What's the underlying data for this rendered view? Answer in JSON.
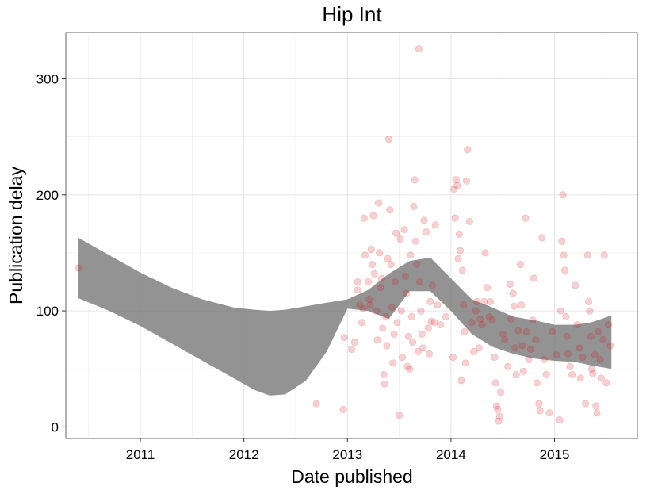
{
  "chart_data": {
    "type": "scatter",
    "title": "Hip Int",
    "xlabel": "Date published",
    "ylabel": "Publication delay",
    "x_tick_labels": [
      "2011",
      "2012",
      "2013",
      "2014",
      "2015"
    ],
    "x_ticks": [
      2011,
      2012,
      2013,
      2014,
      2015
    ],
    "y_ticks": [
      0,
      100,
      200,
      300
    ],
    "y_tick_labels": [
      "0",
      "100",
      "200",
      "300"
    ],
    "xlim": [
      2010.28,
      2015.8
    ],
    "ylim": [
      -10,
      340
    ],
    "grid": true,
    "colors": {
      "points": "#d7191c",
      "ribbon": "#808080",
      "grid": "#ebebeb",
      "border": "#7f7f7f"
    },
    "series": [
      {
        "type": "points",
        "points": [
          [
            2010.4,
            137
          ],
          [
            2012.7,
            20
          ],
          [
            2012.96,
            15
          ],
          [
            2012.97,
            77
          ],
          [
            2013.04,
            67
          ],
          [
            2013.07,
            73
          ],
          [
            2013.1,
            118
          ],
          [
            2013.1,
            125
          ],
          [
            2013.12,
            105
          ],
          [
            2013.14,
            90
          ],
          [
            2013.15,
            102
          ],
          [
            2013.16,
            180
          ],
          [
            2013.17,
            148
          ],
          [
            2013.2,
            125
          ],
          [
            2013.21,
            110
          ],
          [
            2013.22,
            105
          ],
          [
            2013.23,
            153
          ],
          [
            2013.24,
            140
          ],
          [
            2013.25,
            182
          ],
          [
            2013.26,
            132
          ],
          [
            2013.28,
            100
          ],
          [
            2013.29,
            75
          ],
          [
            2013.3,
            193
          ],
          [
            2013.31,
            150
          ],
          [
            2013.32,
            120
          ],
          [
            2013.33,
            128
          ],
          [
            2013.34,
            85
          ],
          [
            2013.35,
            45
          ],
          [
            2013.36,
            37
          ],
          [
            2013.37,
            95
          ],
          [
            2013.38,
            70
          ],
          [
            2013.39,
            145
          ],
          [
            2013.4,
            248
          ],
          [
            2013.41,
            187
          ],
          [
            2013.42,
            140
          ],
          [
            2013.43,
            103
          ],
          [
            2013.44,
            55
          ],
          [
            2013.45,
            80
          ],
          [
            2013.46,
            125
          ],
          [
            2013.47,
            167
          ],
          [
            2013.48,
            90
          ],
          [
            2013.5,
            10
          ],
          [
            2013.51,
            162
          ],
          [
            2013.52,
            100
          ],
          [
            2013.53,
            60
          ],
          [
            2013.55,
            170
          ],
          [
            2013.56,
            130
          ],
          [
            2013.57,
            115
          ],
          [
            2013.58,
            52
          ],
          [
            2013.59,
            78
          ],
          [
            2013.6,
            50
          ],
          [
            2013.61,
            148
          ],
          [
            2013.62,
            95
          ],
          [
            2013.63,
            73
          ],
          [
            2013.64,
            190
          ],
          [
            2013.65,
            213
          ],
          [
            2013.66,
            160
          ],
          [
            2013.67,
            140
          ],
          [
            2013.68,
            65
          ],
          [
            2013.69,
            326
          ],
          [
            2013.7,
            125
          ],
          [
            2013.71,
            100
          ],
          [
            2013.72,
            80
          ],
          [
            2013.73,
            68
          ],
          [
            2013.74,
            178
          ],
          [
            2013.76,
            168
          ],
          [
            2013.78,
            85
          ],
          [
            2013.79,
            63
          ],
          [
            2013.8,
            108
          ],
          [
            2013.81,
            91
          ],
          [
            2013.82,
            122
          ],
          [
            2013.84,
            90
          ],
          [
            2013.85,
            174
          ],
          [
            2013.87,
            105
          ],
          [
            2013.9,
            88
          ],
          [
            2013.95,
            95
          ],
          [
            2014.02,
            60
          ],
          [
            2014.03,
            205
          ],
          [
            2014.04,
            180
          ],
          [
            2014.05,
            213
          ],
          [
            2014.06,
            208
          ],
          [
            2014.07,
            145
          ],
          [
            2014.08,
            166
          ],
          [
            2014.09,
            152
          ],
          [
            2014.1,
            40
          ],
          [
            2014.11,
            135
          ],
          [
            2014.12,
            105
          ],
          [
            2014.13,
            82
          ],
          [
            2014.14,
            55
          ],
          [
            2014.15,
            212
          ],
          [
            2014.16,
            239
          ],
          [
            2014.18,
            177
          ],
          [
            2014.2,
            90
          ],
          [
            2014.22,
            65
          ],
          [
            2014.24,
            100
          ],
          [
            2014.25,
            108
          ],
          [
            2014.27,
            68
          ],
          [
            2014.28,
            93
          ],
          [
            2014.3,
            88
          ],
          [
            2014.32,
            108
          ],
          [
            2014.33,
            150
          ],
          [
            2014.35,
            120
          ],
          [
            2014.37,
            95
          ],
          [
            2014.38,
            108
          ],
          [
            2014.4,
            92
          ],
          [
            2014.42,
            60
          ],
          [
            2014.43,
            38
          ],
          [
            2014.44,
            18
          ],
          [
            2014.45,
            15
          ],
          [
            2014.46,
            5
          ],
          [
            2014.47,
            9
          ],
          [
            2014.48,
            30
          ],
          [
            2014.5,
            80
          ],
          [
            2014.52,
            75
          ],
          [
            2014.55,
            52
          ],
          [
            2014.57,
            123
          ],
          [
            2014.58,
            93
          ],
          [
            2014.6,
            115
          ],
          [
            2014.61,
            104
          ],
          [
            2014.62,
            68
          ],
          [
            2014.63,
            45
          ],
          [
            2014.65,
            83
          ],
          [
            2014.67,
            140
          ],
          [
            2014.68,
            105
          ],
          [
            2014.69,
            70
          ],
          [
            2014.7,
            48
          ],
          [
            2014.72,
            180
          ],
          [
            2014.73,
            82
          ],
          [
            2014.75,
            58
          ],
          [
            2014.77,
            67
          ],
          [
            2014.79,
            92
          ],
          [
            2014.8,
            128
          ],
          [
            2014.82,
            75
          ],
          [
            2014.83,
            38
          ],
          [
            2014.85,
            20
          ],
          [
            2014.86,
            14
          ],
          [
            2014.88,
            163
          ],
          [
            2014.9,
            58
          ],
          [
            2014.92,
            45
          ],
          [
            2014.95,
            12
          ],
          [
            2014.98,
            82
          ],
          [
            2015.02,
            62
          ],
          [
            2015.05,
            6
          ],
          [
            2015.06,
            100
          ],
          [
            2015.07,
            160
          ],
          [
            2015.08,
            200
          ],
          [
            2015.09,
            148
          ],
          [
            2015.1,
            135
          ],
          [
            2015.11,
            95
          ],
          [
            2015.12,
            78
          ],
          [
            2015.13,
            63
          ],
          [
            2015.15,
            52
          ],
          [
            2015.17,
            45
          ],
          [
            2015.2,
            122
          ],
          [
            2015.22,
            88
          ],
          [
            2015.24,
            68
          ],
          [
            2015.25,
            42
          ],
          [
            2015.27,
            60
          ],
          [
            2015.3,
            20
          ],
          [
            2015.32,
            148
          ],
          [
            2015.33,
            108
          ],
          [
            2015.34,
            100
          ],
          [
            2015.35,
            78
          ],
          [
            2015.36,
            50
          ],
          [
            2015.37,
            46
          ],
          [
            2015.39,
            62
          ],
          [
            2015.4,
            18
          ],
          [
            2015.41,
            12
          ],
          [
            2015.42,
            82
          ],
          [
            2015.44,
            58
          ],
          [
            2015.45,
            42
          ],
          [
            2015.47,
            75
          ],
          [
            2015.48,
            148
          ],
          [
            2015.5,
            38
          ],
          [
            2015.52,
            88
          ],
          [
            2015.54,
            70
          ]
        ]
      },
      {
        "type": "smooth-band",
        "x": [
          2010.4,
          2010.7,
          2011.0,
          2011.3,
          2011.6,
          2011.9,
          2012.1,
          2012.25,
          2012.4,
          2012.6,
          2012.8,
          2013.0,
          2013.2,
          2013.4,
          2013.6,
          2013.8,
          2014.0,
          2014.2,
          2014.4,
          2014.6,
          2014.8,
          2015.0,
          2015.2,
          2015.35,
          2015.55
        ],
        "upper": [
          163,
          148,
          133,
          120,
          110,
          103,
          101,
          100,
          101,
          104,
          107,
          110,
          118,
          132,
          143,
          146,
          128,
          110,
          103,
          95,
          92,
          88,
          88,
          90,
          96
        ],
        "lower": [
          111,
          100,
          87,
          72,
          57,
          42,
          32,
          27,
          28,
          40,
          65,
          102,
          100,
          93,
          117,
          117,
          100,
          80,
          69,
          63,
          59,
          57,
          56,
          53,
          50
        ]
      }
    ]
  }
}
